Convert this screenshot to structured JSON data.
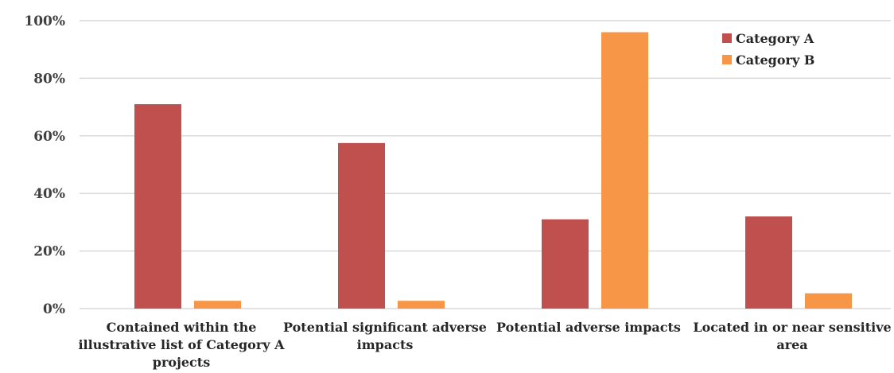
{
  "chart_data": {
    "type": "bar",
    "title": "",
    "xlabel": "",
    "ylabel": "",
    "categories": [
      [
        "Contained within the",
        "illustrative list of Category A",
        "projects"
      ],
      [
        "Potential significant adverse",
        "impacts"
      ],
      [
        "Potential adverse impacts"
      ],
      [
        "Located in or near sensitive",
        "area"
      ]
    ],
    "series": [
      {
        "name": "Category A",
        "color": "#c0504d",
        "values": [
          71,
          57.5,
          31,
          32
        ]
      },
      {
        "name": "Category B",
        "color": "#f79646",
        "values": [
          2.7,
          2.7,
          96,
          5.3
        ]
      }
    ],
    "ylim": [
      0,
      100
    ],
    "yticks": [
      0,
      20,
      40,
      60,
      80,
      100
    ],
    "ytick_labels": [
      "0%",
      "20%",
      "40%",
      "60%",
      "80%",
      "100%"
    ],
    "grid": true,
    "legend_position": "top-right"
  }
}
